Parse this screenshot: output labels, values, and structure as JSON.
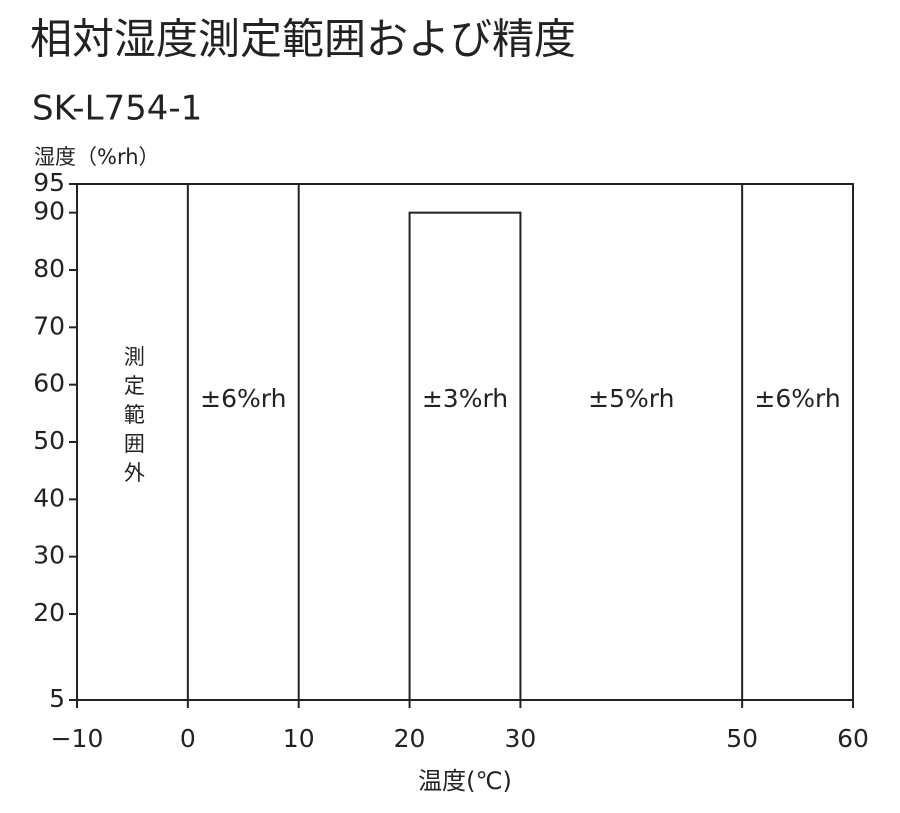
{
  "chart_data": {
    "type": "region",
    "title": "相対湿度測定範囲および精度",
    "subtitle": "SK-L754-1",
    "y_label": "湿度（%rh）",
    "x_label": "温度(℃)",
    "xlim": [
      -10,
      60
    ],
    "ylim": [
      5,
      95
    ],
    "xticks": [
      {
        "value": -10,
        "label": "−10"
      },
      0,
      10,
      20,
      30,
      50,
      60
    ],
    "yticks": [
      5,
      20,
      30,
      40,
      50,
      60,
      70,
      80,
      90,
      95
    ],
    "boundaries": [
      0,
      10,
      50
    ],
    "box": {
      "x": [
        20,
        30
      ],
      "y": 90
    },
    "zones": [
      {
        "label": "測定範囲外",
        "x": [
          -10,
          0
        ],
        "vertical": true
      },
      {
        "label": "±6%rh",
        "x": [
          0,
          10
        ]
      },
      {
        "label": "±3%rh",
        "x": [
          20,
          30
        ]
      },
      {
        "label": "±5%rh",
        "x": [
          30,
          50
        ]
      },
      {
        "label": "±6%rh",
        "x": [
          50,
          60
        ]
      }
    ],
    "color": "#222222"
  }
}
